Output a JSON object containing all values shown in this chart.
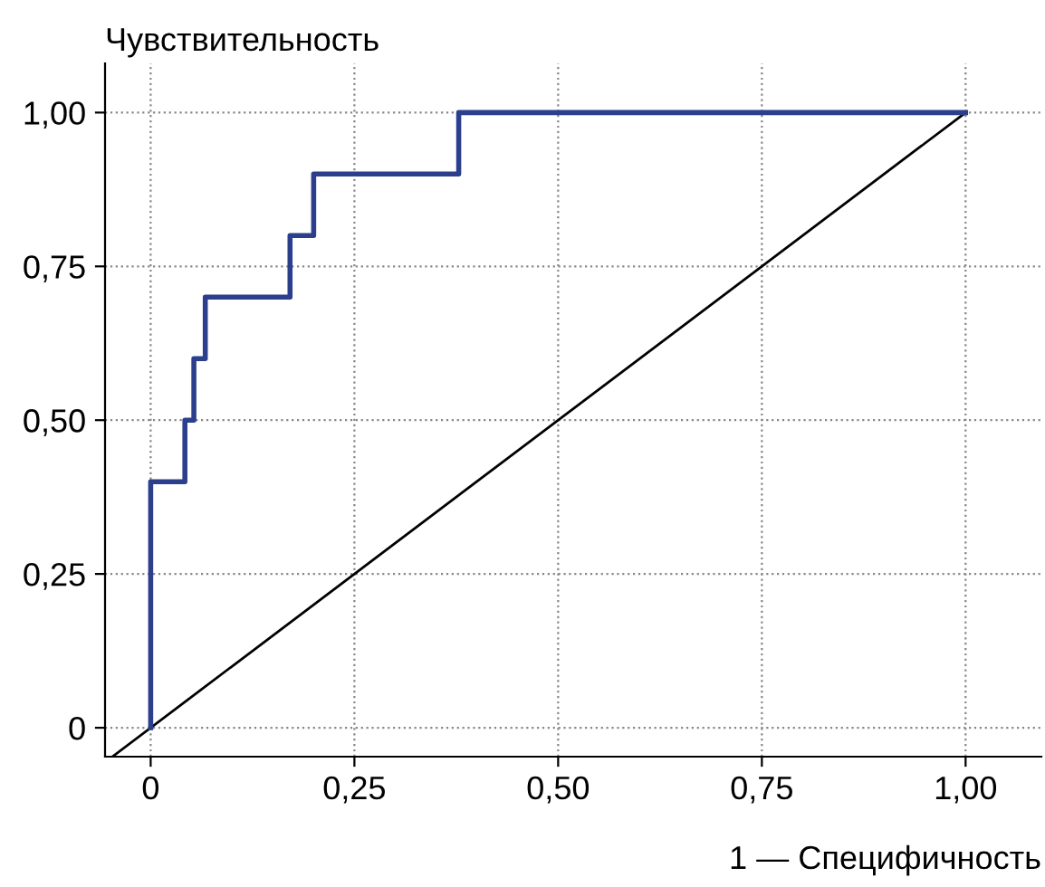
{
  "chart_data": {
    "type": "step",
    "xlabel": "1 — Специфичность",
    "ylabel": "Чувствительность",
    "series": [
      {
        "color": "#2b3f8c",
        "x": [
          0,
          0,
          0.042,
          0.053,
          0.067,
          0.171,
          0.2,
          0.378,
          1.0
        ],
        "values": [
          0,
          0.4,
          0.5,
          0.6,
          0.7,
          0.8,
          0.9,
          1.0,
          1.0
        ]
      },
      {
        "type": "line",
        "color": "#000000",
        "x": [
          -0.047,
          1.0
        ],
        "values": [
          -0.047,
          1.0
        ]
      }
    ],
    "xlim": [
      -0.056,
      1.093
    ],
    "ylim": [
      -0.047,
      1.08
    ],
    "xticks": [
      {
        "value": 0,
        "label": "0"
      },
      {
        "value": 0.25,
        "label": "0,25"
      },
      {
        "value": 0.5,
        "label": "0,50"
      },
      {
        "value": 0.75,
        "label": "0,75"
      },
      {
        "value": 1.0,
        "label": "1,00"
      }
    ],
    "yticks": [
      {
        "value": 0,
        "label": "0"
      },
      {
        "value": 0.25,
        "label": "0,25"
      },
      {
        "value": 0.5,
        "label": "0,50"
      },
      {
        "value": 0.75,
        "label": "0,75"
      },
      {
        "value": 1.0,
        "label": "1,00"
      }
    ],
    "grid": true
  }
}
